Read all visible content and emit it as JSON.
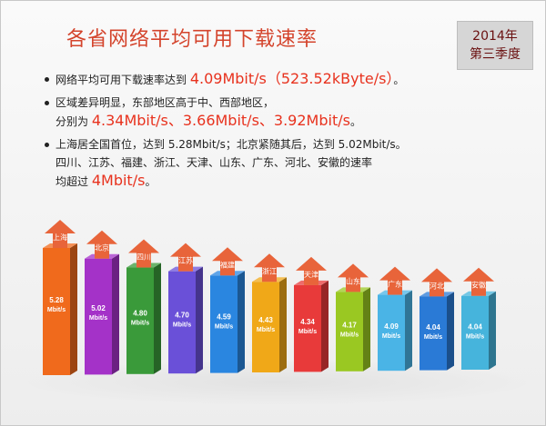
{
  "title": "各省网络平均可用下载速率",
  "badge": {
    "year": "2014年",
    "quarter": "第三季度"
  },
  "bullets": {
    "b1": {
      "prefix": "网络平均可用下载速率达到",
      "value": "4.09Mbit/s（523.52kByte/s）",
      "suffix": "。"
    },
    "b2": {
      "line1": "区域差异明显，东部地区高于中、西部地区，",
      "line2_prefix": "分别为",
      "values": "4.34Mbit/s、3.66Mbit/s、3.92Mbit/s",
      "line2_suffix": "。"
    },
    "b3": {
      "line1": "上海居全国首位，达到 5.28Mbit/s；北京紧随其后，达到 5.02Mbit/s。",
      "line2": "四川、江苏、福建、浙江、天津、山东、广东、河北、安徽的速率",
      "line3_prefix": "均超过",
      "line3_value": "4Mbit/s",
      "line3_suffix": "。"
    }
  },
  "chart_data": {
    "type": "bar",
    "categories": [
      "上海",
      "北京",
      "四川",
      "江苏",
      "福建",
      "浙江",
      "天津",
      "山东",
      "广东",
      "河北",
      "安徽"
    ],
    "values": [
      5.28,
      5.02,
      4.8,
      4.7,
      4.59,
      4.43,
      4.34,
      4.17,
      4.09,
      4.04,
      4.04
    ],
    "value_labels": [
      "5.28",
      "5.02",
      "4.80",
      "4.70",
      "4.59",
      "4.43",
      "4.34",
      "4.17",
      "4.09",
      "4.04",
      "4.04"
    ],
    "unit": "Mbit/s",
    "colors": [
      "#f06a1c",
      "#a432c8",
      "#3a9a3a",
      "#6a50d8",
      "#2a86e0",
      "#f0a818",
      "#e83a3a",
      "#9ac822",
      "#4ab4e6",
      "#2a7ad6",
      "#46b4dc"
    ],
    "arrow_color": "#e8643a"
  }
}
